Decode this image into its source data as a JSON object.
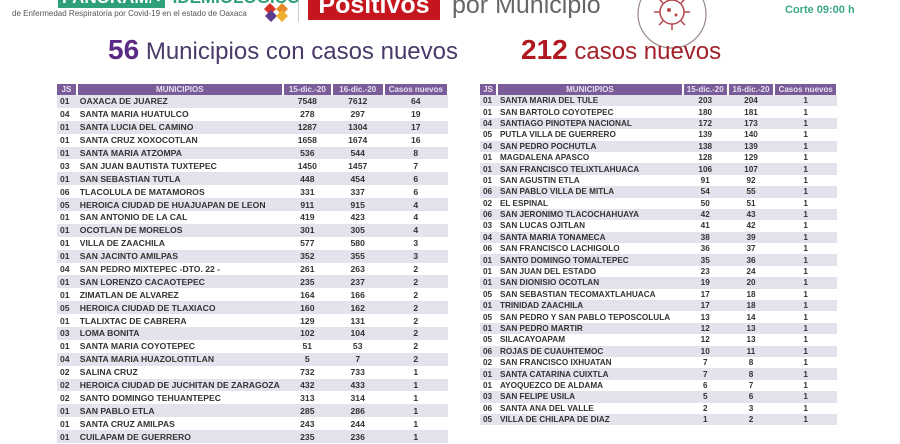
{
  "header": {
    "panorama": "PANORAMA",
    "epidemiologico": "EPIDEMIOLÓGICO",
    "subtitle": "de Enfermedad Respiratoria por Covid-19 en el estado de Oaxaca",
    "positivos": "Positivos",
    "por_municipio": "por Municipio",
    "corte": "Corte 09:00 h"
  },
  "summary": {
    "municipios_count": "56",
    "municipios_label": "Municipios con casos nuevos",
    "casos_count": "212",
    "casos_label": "casos nuevos"
  },
  "colors": {
    "header_purple": "#7a5c99",
    "accent_red": "#c4161c",
    "accent_green": "#2fa07a",
    "row_stripe": "#e4e2ec"
  },
  "columns": [
    "JS",
    "MUNICIPIOS",
    "15-dic.-20",
    "16-dic.-20",
    "Casos nuevos"
  ],
  "left_table": [
    [
      "01",
      "OAXACA DE JUAREZ",
      "7548",
      "7612",
      "64"
    ],
    [
      "04",
      "SANTA MARIA HUATULCO",
      "278",
      "297",
      "19"
    ],
    [
      "01",
      "SANTA LUCIA DEL CAMINO",
      "1287",
      "1304",
      "17"
    ],
    [
      "01",
      "SANTA CRUZ XOXOCOTLAN",
      "1658",
      "1674",
      "16"
    ],
    [
      "01",
      "SANTA MARIA ATZOMPA",
      "536",
      "544",
      "8"
    ],
    [
      "03",
      "SAN JUAN BAUTISTA TUXTEPEC",
      "1450",
      "1457",
      "7"
    ],
    [
      "01",
      "SAN SEBASTIAN TUTLA",
      "448",
      "454",
      "6"
    ],
    [
      "06",
      "TLACOLULA DE MATAMOROS",
      "331",
      "337",
      "6"
    ],
    [
      "05",
      "HEROICA CIUDAD DE HUAJUAPAN DE LEON",
      "911",
      "915",
      "4"
    ],
    [
      "01",
      "SAN ANTONIO DE LA CAL",
      "419",
      "423",
      "4"
    ],
    [
      "01",
      "OCOTLAN DE MORELOS",
      "301",
      "305",
      "4"
    ],
    [
      "01",
      "VILLA DE ZAACHILA",
      "577",
      "580",
      "3"
    ],
    [
      "01",
      "SAN JACINTO AMILPAS",
      "352",
      "355",
      "3"
    ],
    [
      "04",
      "SAN PEDRO MIXTEPEC -DTO. 22 -",
      "261",
      "263",
      "2"
    ],
    [
      "01",
      "SAN LORENZO CACAOTEPEC",
      "235",
      "237",
      "2"
    ],
    [
      "01",
      "ZIMATLAN DE ALVAREZ",
      "164",
      "166",
      "2"
    ],
    [
      "05",
      "HEROICA CIUDAD DE TLAXIACO",
      "160",
      "162",
      "2"
    ],
    [
      "01",
      "TLALIXTAC DE CABRERA",
      "129",
      "131",
      "2"
    ],
    [
      "03",
      "LOMA BONITA",
      "102",
      "104",
      "2"
    ],
    [
      "01",
      "SANTA MARIA COYOTEPEC",
      "51",
      "53",
      "2"
    ],
    [
      "04",
      "SANTA MARIA HUAZOLOTITLAN",
      "5",
      "7",
      "2"
    ],
    [
      "02",
      "SALINA CRUZ",
      "732",
      "733",
      "1"
    ],
    [
      "02",
      "HEROICA CIUDAD DE JUCHITAN DE ZARAGOZA",
      "432",
      "433",
      "1"
    ],
    [
      "02",
      "SANTO DOMINGO TEHUANTEPEC",
      "313",
      "314",
      "1"
    ],
    [
      "01",
      "SAN PABLO ETLA",
      "285",
      "286",
      "1"
    ],
    [
      "01",
      "SANTA CRUZ AMILPAS",
      "243",
      "244",
      "1"
    ],
    [
      "01",
      "CUILAPAM DE GUERRERO",
      "235",
      "236",
      "1"
    ]
  ],
  "right_table": [
    [
      "01",
      "SANTA MARIA DEL TULE",
      "203",
      "204",
      "1"
    ],
    [
      "01",
      "SAN BARTOLO COYOTEPEC",
      "180",
      "181",
      "1"
    ],
    [
      "04",
      "SANTIAGO PINOTEPA NACIONAL",
      "172",
      "173",
      "1"
    ],
    [
      "05",
      "PUTLA VILLA DE GUERRERO",
      "139",
      "140",
      "1"
    ],
    [
      "04",
      "SAN PEDRO POCHUTLA",
      "138",
      "139",
      "1"
    ],
    [
      "01",
      "MAGDALENA APASCO",
      "128",
      "129",
      "1"
    ],
    [
      "01",
      "SAN FRANCISCO TELIXTLAHUACA",
      "106",
      "107",
      "1"
    ],
    [
      "01",
      "SAN AGUSTIN ETLA",
      "91",
      "92",
      "1"
    ],
    [
      "06",
      "SAN PABLO VILLA DE MITLA",
      "54",
      "55",
      "1"
    ],
    [
      "02",
      "EL ESPINAL",
      "50",
      "51",
      "1"
    ],
    [
      "06",
      "SAN JERONIMO TLACOCHAHUAYA",
      "42",
      "43",
      "1"
    ],
    [
      "03",
      "SAN LUCAS OJITLAN",
      "41",
      "42",
      "1"
    ],
    [
      "04",
      "SANTA MARIA TONAMECA",
      "38",
      "39",
      "1"
    ],
    [
      "06",
      "SAN FRANCISCO LACHIGOLO",
      "36",
      "37",
      "1"
    ],
    [
      "01",
      "SANTO DOMINGO TOMALTEPEC",
      "35",
      "36",
      "1"
    ],
    [
      "01",
      "SAN JUAN DEL ESTADO",
      "23",
      "24",
      "1"
    ],
    [
      "01",
      "SAN DIONISIO OCOTLAN",
      "19",
      "20",
      "1"
    ],
    [
      "05",
      "SAN SEBASTIAN TECOMAXTLAHUACA",
      "17",
      "18",
      "1"
    ],
    [
      "01",
      "TRINIDAD ZAACHILA",
      "17",
      "18",
      "1"
    ],
    [
      "05",
      "SAN PEDRO Y SAN PABLO TEPOSCOLULA",
      "13",
      "14",
      "1"
    ],
    [
      "01",
      "SAN PEDRO MARTIR",
      "12",
      "13",
      "1"
    ],
    [
      "05",
      "SILACAYOAPAM",
      "12",
      "13",
      "1"
    ],
    [
      "06",
      "ROJAS DE CUAUHTEMOC",
      "10",
      "11",
      "1"
    ],
    [
      "02",
      "SAN FRANCISCO IXHUATAN",
      "7",
      "8",
      "1"
    ],
    [
      "01",
      "SANTA CATARINA CUIXTLA",
      "7",
      "8",
      "1"
    ],
    [
      "01",
      "AYOQUEZCO DE ALDAMA",
      "6",
      "7",
      "1"
    ],
    [
      "03",
      "SAN FELIPE USILA",
      "5",
      "6",
      "1"
    ],
    [
      "06",
      "SANTA ANA DEL VALLE",
      "2",
      "3",
      "1"
    ],
    [
      "05",
      "VILLA DE CHILAPA DE DIAZ",
      "1",
      "2",
      "1"
    ]
  ]
}
